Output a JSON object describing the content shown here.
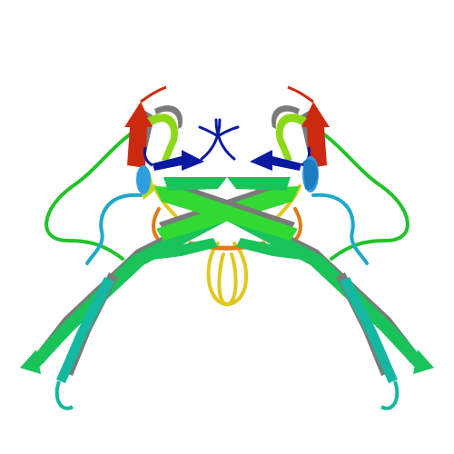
{
  "image": {
    "kind": "protein-ribbon-render",
    "background": "#ffffff",
    "colors": {
      "n_terminus_blue": "#0a1aa0",
      "sky_blue": "#2f9ee0",
      "cyan": "#1ea9c8",
      "teal": "#14b8a0",
      "green_sheet": "#19c35a",
      "bright_green": "#33d933",
      "lime": "#8ed81a",
      "yellow": "#e0c81e",
      "orange": "#e07a14",
      "red": "#cc2a10",
      "sheet_edge_gray": "#7a7a7a"
    }
  }
}
